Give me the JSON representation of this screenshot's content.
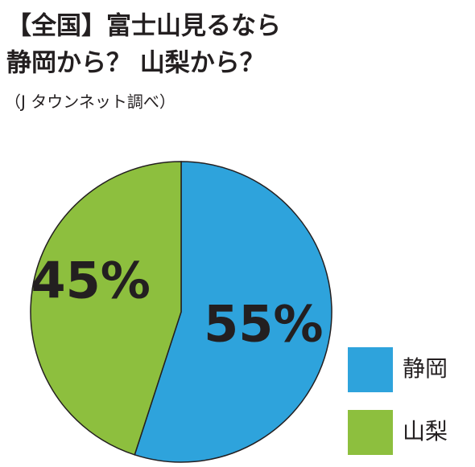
{
  "chart_data": {
    "type": "pie",
    "title": [
      "【全国】富士山見るなら",
      "静岡から？ 山梨から？"
    ],
    "subtitle": "（J タウンネット調べ）",
    "categories": [
      "静岡",
      "山梨"
    ],
    "values": [
      55,
      45
    ],
    "value_labels": [
      "55%",
      "45%"
    ],
    "colors": [
      "#2ea3dc",
      "#8dbf3e"
    ]
  }
}
